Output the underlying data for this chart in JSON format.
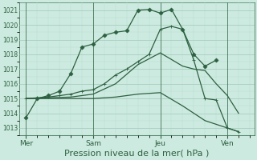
{
  "bg_color": "#cdeae0",
  "grid_major_color": "#a0c8b8",
  "grid_minor_color": "#b8ddd0",
  "line_color": "#2d6040",
  "xlabel": "Pression niveau de la mer( hPa )",
  "xlabel_fontsize": 8,
  "ylim": [
    1012.5,
    1021.5
  ],
  "yticks": [
    1013,
    1014,
    1015,
    1016,
    1017,
    1018,
    1019,
    1020,
    1021
  ],
  "xtick_labels": [
    "Mer",
    "Sam",
    "Jeu",
    "Ven"
  ],
  "day_positions": [
    0,
    3,
    6,
    9
  ],
  "total_days": 10,
  "series": {
    "s1": {
      "x": [
        0,
        0.5,
        1.0,
        1.5,
        2.0,
        2.5,
        3.0,
        3.5,
        4.0,
        4.5,
        5.0,
        5.5,
        6.0,
        6.5,
        7.0,
        7.5,
        8.0,
        8.5
      ],
      "y": [
        1013.7,
        1015.0,
        1015.2,
        1015.5,
        1016.7,
        1018.5,
        1018.7,
        1019.3,
        1019.5,
        1019.6,
        1021.0,
        1021.05,
        1020.8,
        1021.05,
        1019.7,
        1018.0,
        1017.2,
        1017.6
      ],
      "marker": "D",
      "markersize": 2.5,
      "linewidth": 0.9
    },
    "s2": {
      "x": [
        0,
        0.5,
        1.0,
        1.5,
        2.0,
        2.5,
        3.0,
        3.5,
        4.0,
        4.5,
        5.0,
        5.5,
        6.0,
        6.5,
        7.0,
        7.5,
        8.0,
        8.5,
        9.0,
        9.5
      ],
      "y": [
        1015.0,
        1015.05,
        1015.1,
        1015.2,
        1015.3,
        1015.5,
        1015.6,
        1016.0,
        1016.6,
        1017.0,
        1017.5,
        1018.0,
        1019.7,
        1019.9,
        1019.7,
        1017.6,
        1015.0,
        1014.9,
        1013.0,
        1012.75
      ],
      "marker": "+",
      "markersize": 3.5,
      "linewidth": 0.9
    },
    "s3": {
      "x": [
        0,
        1.0,
        2.0,
        3.0,
        4.0,
        5.0,
        6.0,
        7.0,
        7.5,
        8.0,
        8.5,
        9.0,
        9.5
      ],
      "y": [
        1015.0,
        1015.05,
        1015.1,
        1015.3,
        1016.0,
        1017.3,
        1018.1,
        1017.2,
        1017.0,
        1016.9,
        1016.0,
        1015.2,
        1014.0
      ],
      "marker": null,
      "markersize": 0,
      "linewidth": 0.9
    },
    "s4": {
      "x": [
        0,
        1.0,
        2.0,
        3.0,
        4.0,
        5.0,
        6.0,
        7.0,
        8.0,
        9.0,
        9.5
      ],
      "y": [
        1015.0,
        1015.0,
        1015.0,
        1015.0,
        1015.1,
        1015.3,
        1015.4,
        1014.5,
        1013.5,
        1013.0,
        1012.75
      ],
      "marker": null,
      "markersize": 0,
      "linewidth": 0.9
    }
  },
  "xlim": [
    -0.3,
    10.2
  ],
  "vline_positions": [
    0,
    3,
    6,
    9
  ]
}
